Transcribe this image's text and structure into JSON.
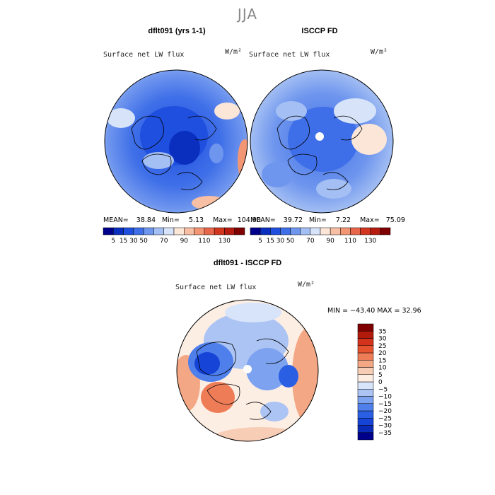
{
  "season": "JJA",
  "units": "W/m²",
  "panels": [
    {
      "title": "dflt091 (yrs 1-1)",
      "variable": "Surface net LW flux",
      "units": "W/m²",
      "stats": {
        "mean_label": "MEAN=",
        "mean": "38.84",
        "min_label": "Min=",
        "min": "5.13",
        "max_label": "Max=",
        "max": "104.90"
      }
    },
    {
      "title": "ISCCP FD",
      "variable": "Surface net LW flux",
      "units": "W/m²",
      "stats": {
        "mean_label": "MEAN=",
        "mean": "39.72",
        "min_label": "Min=",
        "min": "7.22",
        "max_label": "Max=",
        "max": "75.09"
      }
    },
    {
      "title": "dflt091 - ISCCP FD",
      "variable": "Surface net LW flux",
      "units": "W/m²",
      "stats_line": "MIN = −43.40  MAX =  32.96"
    }
  ],
  "abs_colorbar": {
    "colors": [
      "#00008b",
      "#0a2fbf",
      "#1f4fdf",
      "#3f6fe8",
      "#6f96ee",
      "#a4bff3",
      "#d6e3f8",
      "#fbe6d8",
      "#f7bfa3",
      "#f29673",
      "#e8664a",
      "#d3361f",
      "#b51b0f",
      "#7f0000"
    ],
    "tick_labels": [
      "5",
      "15",
      "30",
      "50",
      "70",
      "90",
      "110",
      "130"
    ]
  },
  "diff_colorbar": {
    "colors": [
      "#00008b",
      "#0a2ab8",
      "#1544d6",
      "#2a5fe3",
      "#4f7fea",
      "#7da2ef",
      "#abc4f4",
      "#d7e4f9",
      "#fdeee4",
      "#f8cdb5",
      "#f4a784",
      "#ee7d57",
      "#e6532f",
      "#d3331a",
      "#b21a0c",
      "#7f0000"
    ],
    "tick_labels": [
      "35",
      "30",
      "25",
      "20",
      "15",
      "10",
      "5",
      "0",
      "−5",
      "−10",
      "−15",
      "−20",
      "−25",
      "−30",
      "−35"
    ]
  }
}
